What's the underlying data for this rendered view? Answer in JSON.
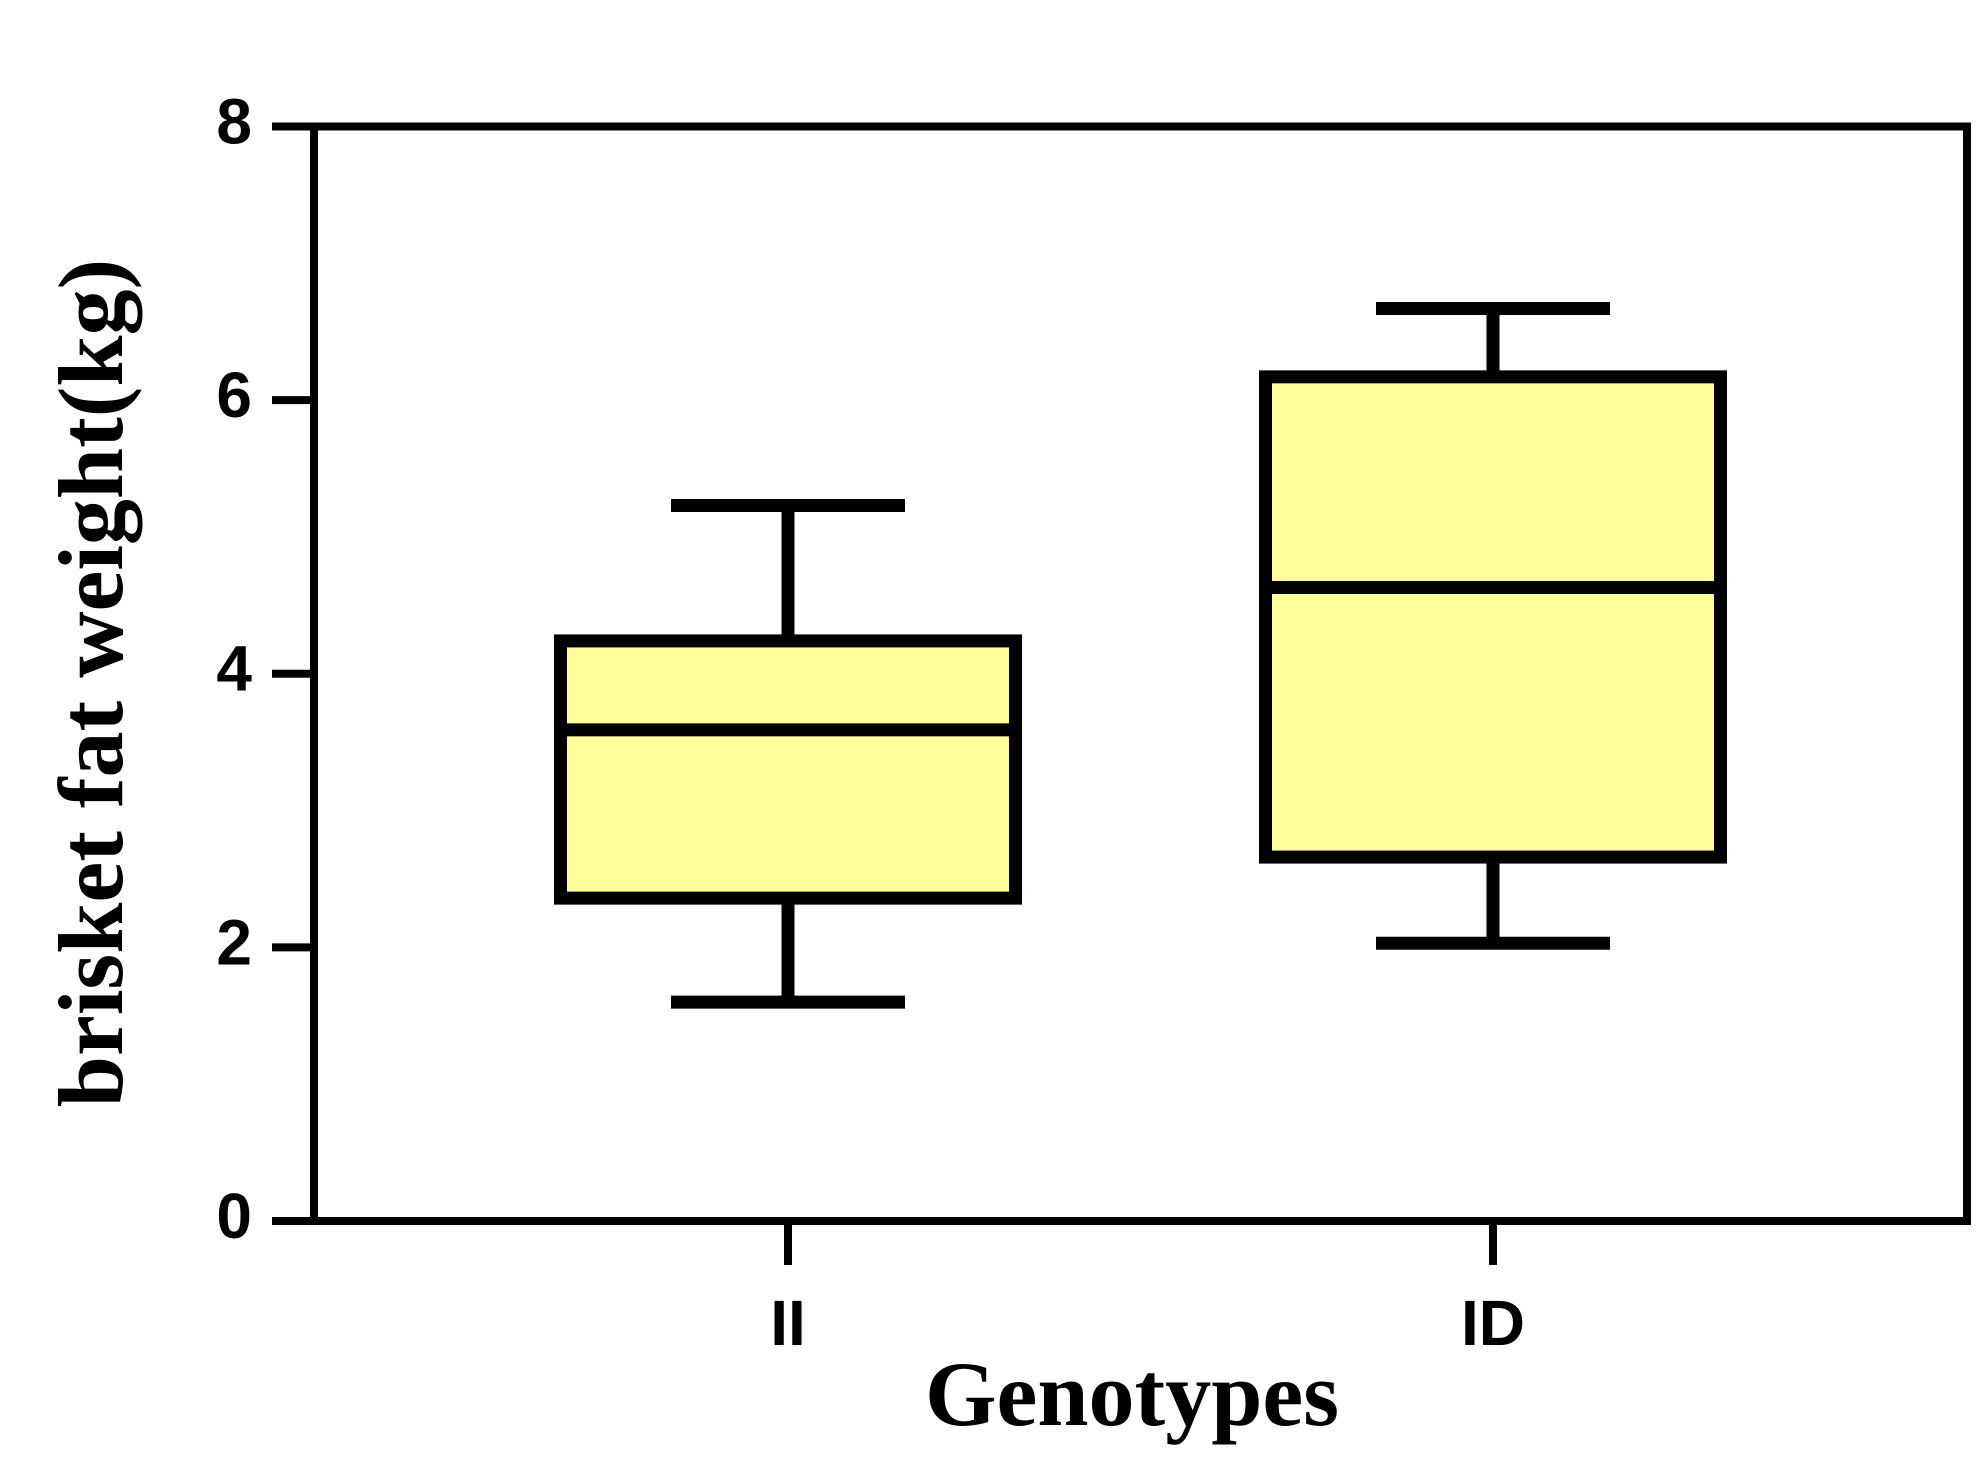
{
  "chart_data": {
    "type": "box",
    "x_label": "Genotypes",
    "y_label": "brisket fat weight(kg)",
    "categories": [
      "II",
      "ID"
    ],
    "min": [
      1.6,
      2.03
    ],
    "q1": [
      2.36,
      2.66
    ],
    "median": [
      3.59,
      4.63
    ],
    "q3": [
      4.24,
      6.17
    ],
    "max": [
      5.23,
      6.67
    ],
    "color": "#ffff99",
    "ylim": [
      0,
      8
    ],
    "yticks": [
      0,
      2,
      4,
      6,
      8
    ],
    "grid": false
  }
}
